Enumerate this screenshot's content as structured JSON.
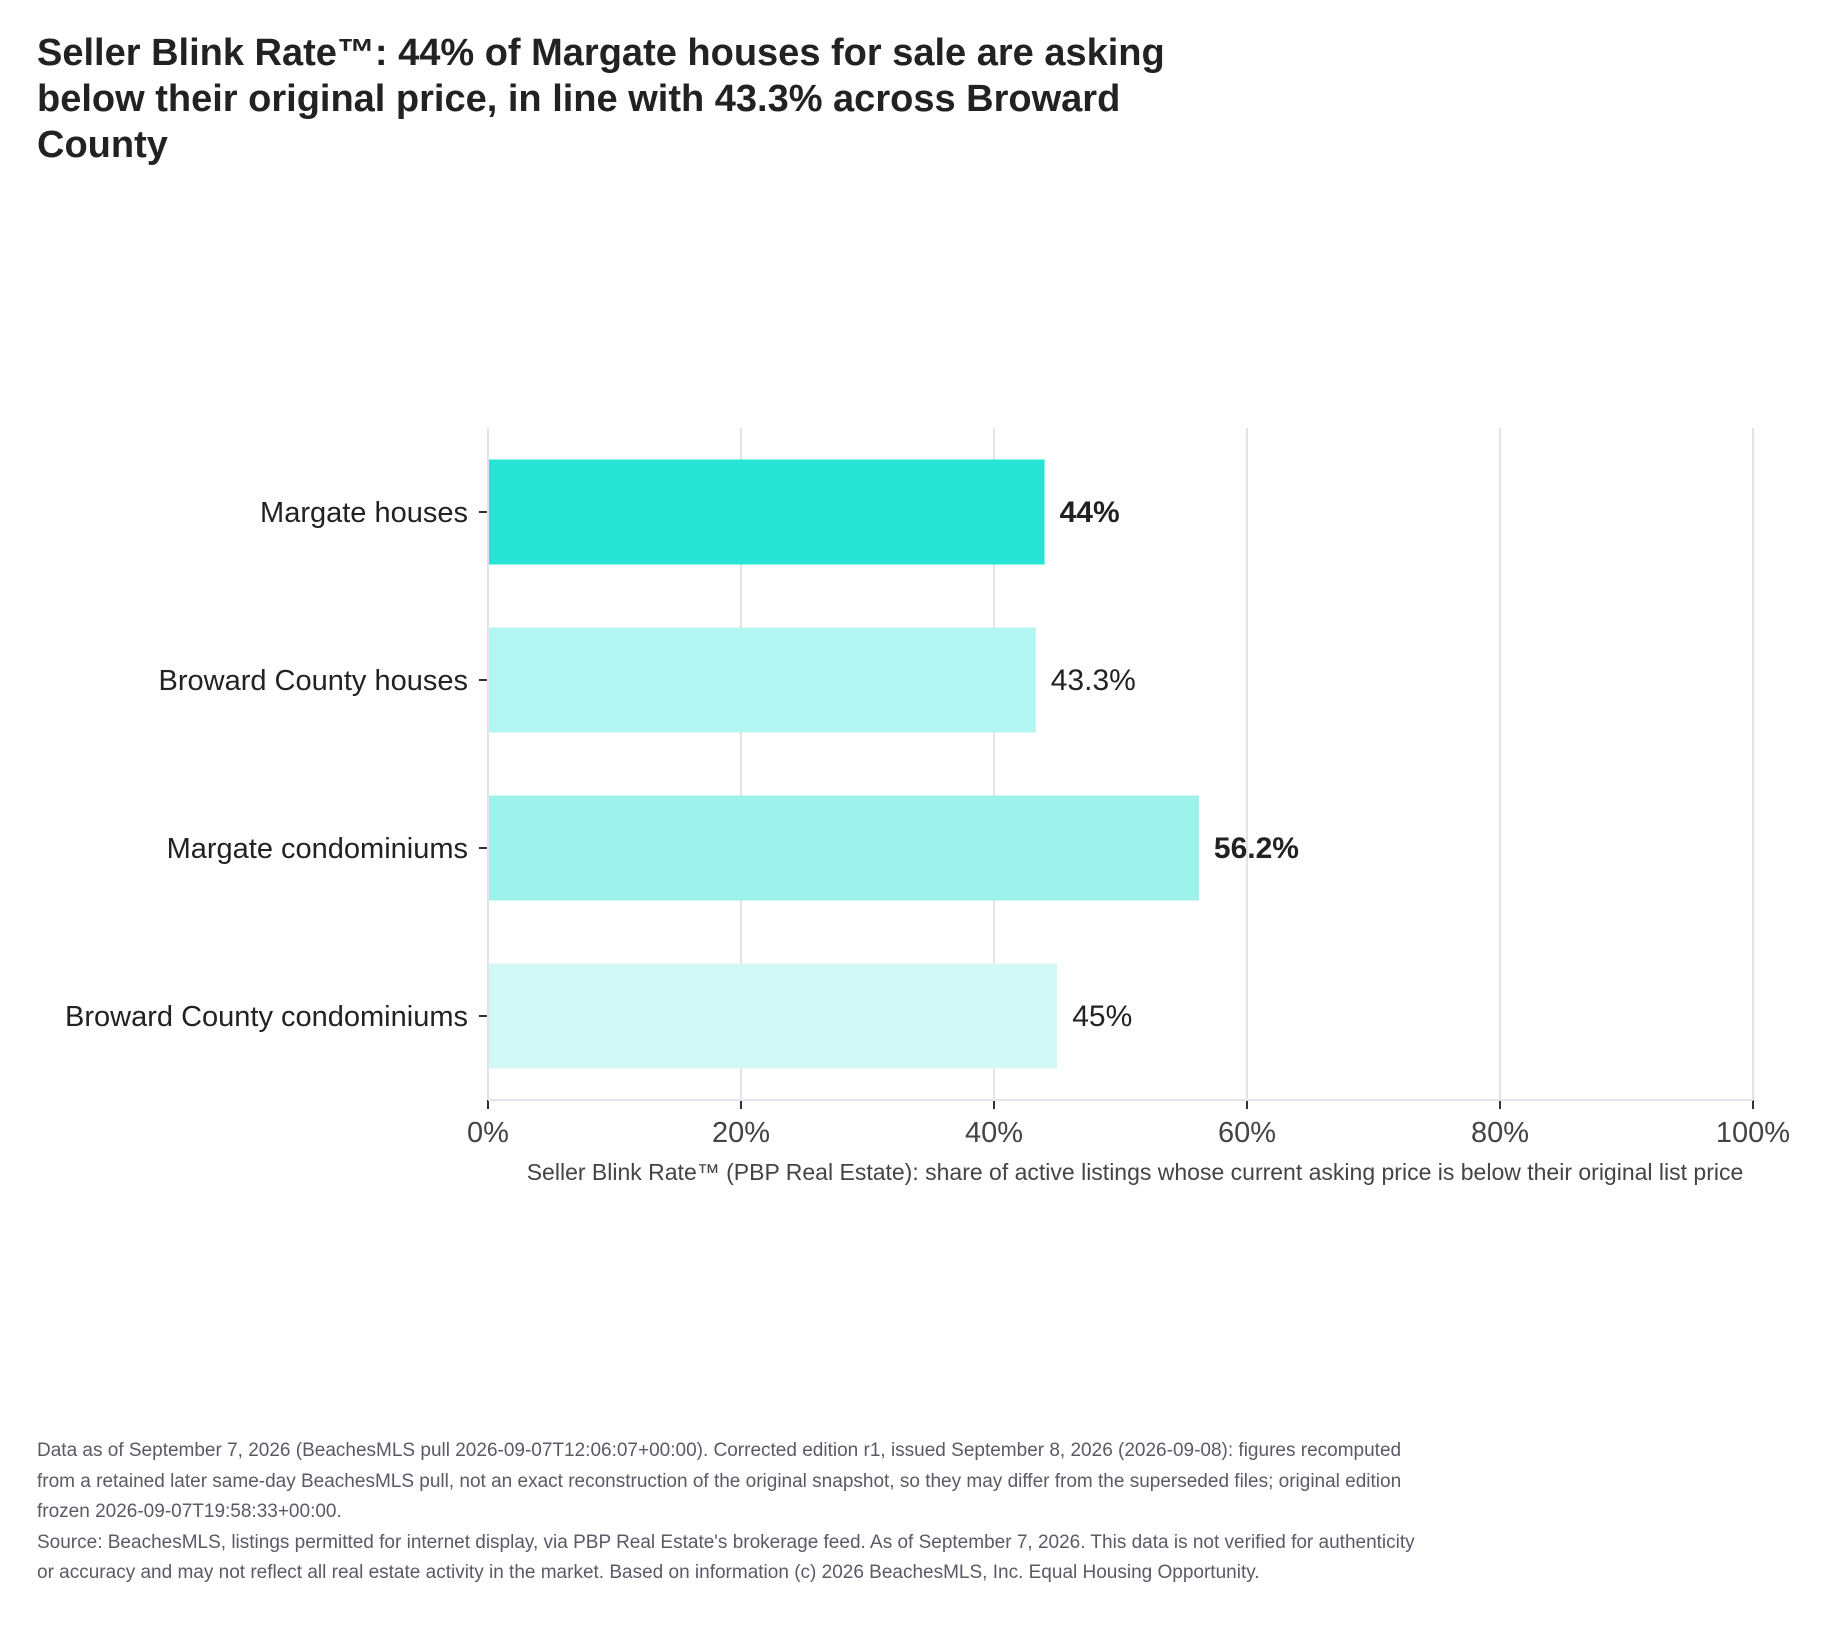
{
  "chart_data": {
    "type": "bar",
    "orientation": "horizontal",
    "title": "Seller Blink Rate™: 44% of Margate houses for sale are asking below their original price, in line with 43.3% across Broward County",
    "xlabel": "Seller Blink Rate™ (PBP Real Estate): share of active listings whose current asking price is below their original list price",
    "ylabel": "",
    "categories": [
      "Margate houses",
      "Broward County houses",
      "Margate condominiums",
      "Broward County condominiums"
    ],
    "values": [
      44,
      43.3,
      56.2,
      45
    ],
    "value_labels": [
      "44%",
      "43.3%",
      "56.2%",
      "45%"
    ],
    "label_bold": [
      true,
      false,
      true,
      false
    ],
    "bar_colors": [
      "#26e5d5",
      "#b3f5f0",
      "#9ef2ec",
      "#d3f9f6"
    ],
    "xlim": [
      0,
      100
    ],
    "xticks": [
      0,
      20,
      40,
      60,
      80,
      100
    ],
    "xtick_labels": [
      "0%",
      "20%",
      "40%",
      "60%",
      "80%",
      "100%"
    ],
    "grid": "vertical"
  },
  "notes": {
    "data_note": "Data as of September 7, 2026 (BeachesMLS pull 2026-09-07T12:06:07+00:00). Corrected edition r1, issued September 8, 2026 (2026-09-08): figures recomputed from a retained later same-day BeachesMLS pull, not an exact reconstruction of the original snapshot, so they may differ from the superseded files; original edition frozen 2026-09-07T19:58:33+00:00.",
    "source": "Source: BeachesMLS, listings permitted for internet display, via PBP Real Estate's brokerage feed. As of September 7, 2026. This data is not verified for authenticity or accuracy and may not reflect all real estate activity in the market. Based on information (c) 2026 BeachesMLS, Inc. Equal Housing Opportunity."
  }
}
